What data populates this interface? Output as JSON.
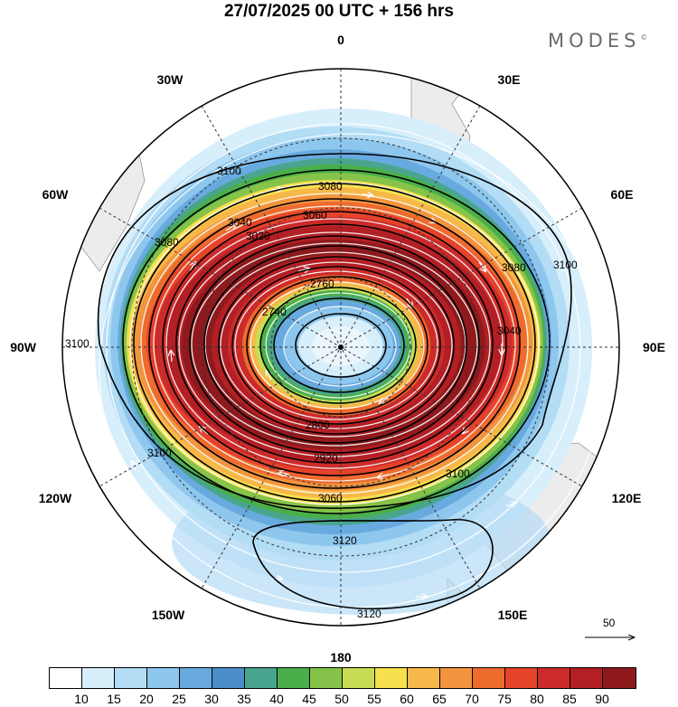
{
  "title": "27/07/2025  00 UTC  + 156 hrs",
  "brand": {
    "name": "MODES",
    "mark": "©"
  },
  "longitude_labels": [
    "0",
    "30E",
    "60E",
    "90E",
    "120E",
    "150E",
    "180",
    "150W",
    "120W",
    "90W",
    "60W",
    "30W"
  ],
  "contour_labels": [
    "3100",
    "3080",
    "3060",
    "3040",
    "3020",
    "2760",
    "2740",
    "2800",
    "2920",
    "3060",
    "3120",
    "3120",
    "3100",
    "3080",
    "3100",
    "3100",
    "3080",
    "3040",
    "3100"
  ],
  "reference_vector": "50",
  "colorbar": {
    "colors": [
      "#ffffff",
      "#d7eefb",
      "#b3dcf5",
      "#8ec7ee",
      "#68aadf",
      "#4a8fc9",
      "#4aa58e",
      "#4aaf4a",
      "#86c34a",
      "#c8dd55",
      "#f6e04e",
      "#f7b84a",
      "#f2953e",
      "#ee6b2e",
      "#e5432a",
      "#cc2b2b",
      "#b21f24",
      "#8e1a1d"
    ],
    "labels": [
      "10",
      "15",
      "20",
      "25",
      "30",
      "35",
      "40",
      "45",
      "50",
      "55",
      "60",
      "65",
      "70",
      "75",
      "80",
      "85",
      "90"
    ]
  }
}
